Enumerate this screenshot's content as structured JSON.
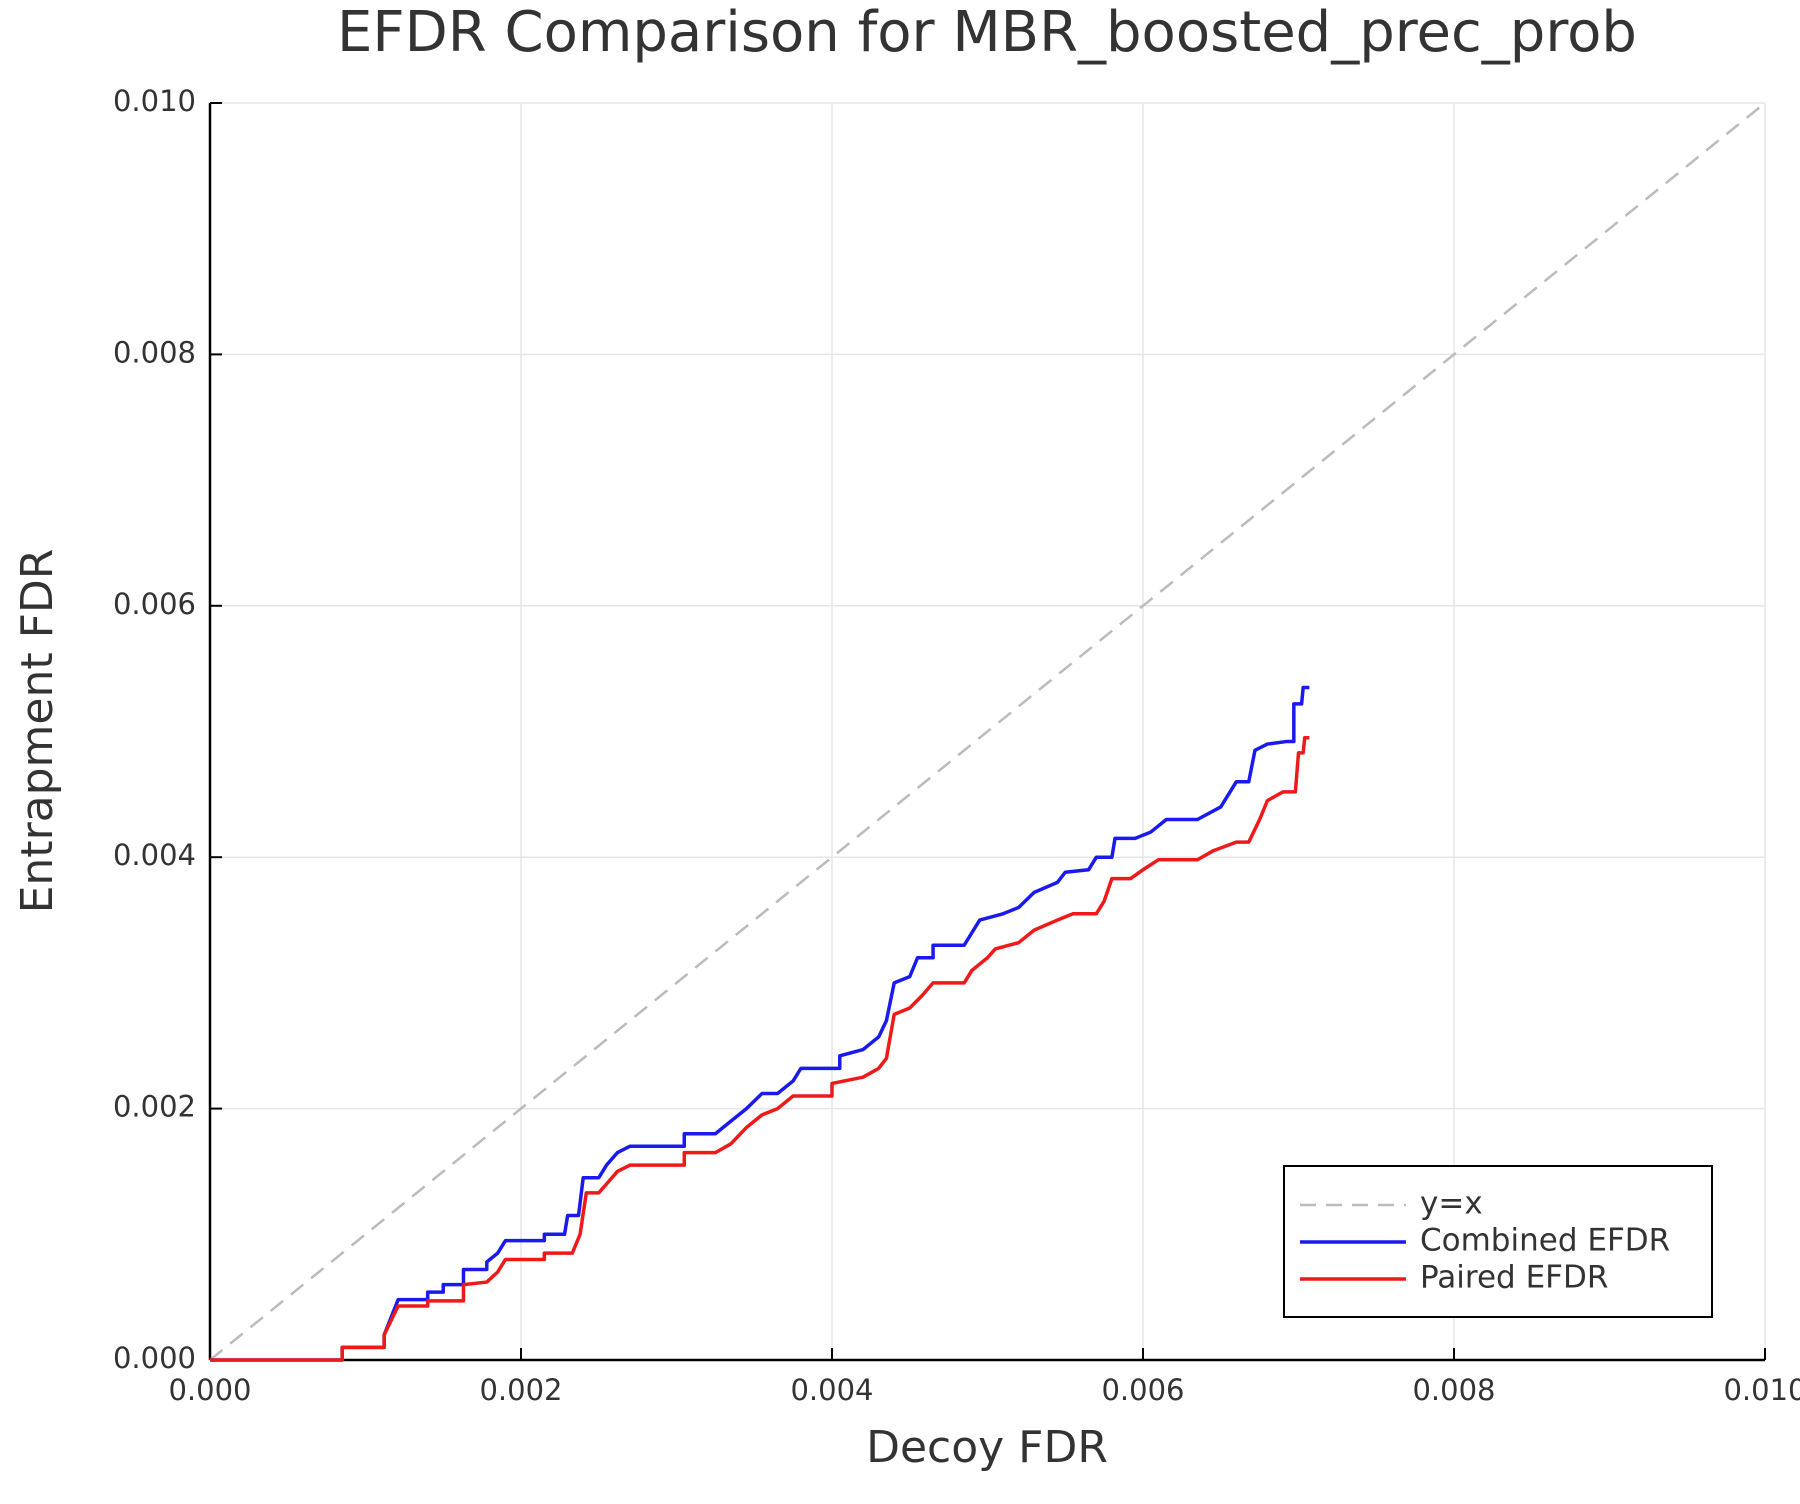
{
  "chart_data": {
    "type": "line",
    "title": "EFDR Comparison for MBR_boosted_prec_prob",
    "xlabel": "Decoy FDR",
    "ylabel": "Entrapment FDR",
    "xlim": [
      0,
      0.01
    ],
    "ylim": [
      0,
      0.01
    ],
    "xticks": [
      {
        "value": 0,
        "label": "0.000"
      },
      {
        "value": 0.002,
        "label": "0.002"
      },
      {
        "value": 0.004,
        "label": "0.004"
      },
      {
        "value": 0.006,
        "label": "0.006"
      },
      {
        "value": 0.008,
        "label": "0.008"
      },
      {
        "value": 0.01,
        "label": "0.010"
      }
    ],
    "yticks": [
      {
        "value": 0,
        "label": "0.000"
      },
      {
        "value": 0.002,
        "label": "0.002"
      },
      {
        "value": 0.004,
        "label": "0.004"
      },
      {
        "value": 0.006,
        "label": "0.006"
      },
      {
        "value": 0.008,
        "label": "0.008"
      },
      {
        "value": 0.01,
        "label": "0.010"
      }
    ],
    "grid": true,
    "legend": "bottom-right",
    "series": [
      {
        "name": "y=x",
        "color": "#bbbbbb",
        "dash": true,
        "x": [
          0,
          0.01
        ],
        "values": [
          0,
          0.01
        ]
      },
      {
        "name": "Combined EFDR",
        "color": "#1a1aee",
        "x": [
          0,
          0.00085,
          0.00085,
          0.00112,
          0.00112,
          0.00121,
          0.0014,
          0.0014,
          0.0015,
          0.0015,
          0.00163,
          0.00163,
          0.00178,
          0.00178,
          0.00185,
          0.0019,
          0.00215,
          0.00215,
          0.00228,
          0.0023,
          0.00237,
          0.0024,
          0.0025,
          0.00255,
          0.00262,
          0.0027,
          0.00305,
          0.00305,
          0.00325,
          0.00335,
          0.00345,
          0.00355,
          0.00365,
          0.00375,
          0.0038,
          0.00405,
          0.00405,
          0.0042,
          0.0043,
          0.00435,
          0.0044,
          0.0045,
          0.00455,
          0.00465,
          0.00465,
          0.00485,
          0.0049,
          0.00495,
          0.0051,
          0.0052,
          0.0053,
          0.00545,
          0.0055,
          0.00565,
          0.0057,
          0.0058,
          0.00582,
          0.00595,
          0.00605,
          0.00615,
          0.00635,
          0.0065,
          0.0066,
          0.00668,
          0.00672,
          0.0068,
          0.00692,
          0.00697,
          0.00697,
          0.00702,
          0.00703,
          0.00707
        ],
        "values": [
          0,
          0,
          0.0001,
          0.0001,
          0.0002,
          0.00048,
          0.00048,
          0.00054,
          0.00054,
          0.0006,
          0.0006,
          0.00072,
          0.00072,
          0.00078,
          0.00085,
          0.00095,
          0.00095,
          0.001,
          0.001,
          0.00115,
          0.00115,
          0.00145,
          0.00145,
          0.00155,
          0.00165,
          0.0017,
          0.0017,
          0.0018,
          0.0018,
          0.0019,
          0.002,
          0.00212,
          0.00212,
          0.00222,
          0.00232,
          0.00232,
          0.00242,
          0.00247,
          0.00257,
          0.0027,
          0.003,
          0.00305,
          0.0032,
          0.0032,
          0.0033,
          0.0033,
          0.0034,
          0.0035,
          0.00355,
          0.0036,
          0.00372,
          0.0038,
          0.00388,
          0.0039,
          0.004,
          0.004,
          0.00415,
          0.00415,
          0.0042,
          0.0043,
          0.0043,
          0.0044,
          0.0046,
          0.0046,
          0.00485,
          0.0049,
          0.00492,
          0.00492,
          0.00522,
          0.00522,
          0.00535,
          0.00535
        ]
      },
      {
        "name": "Paired EFDR",
        "color": "#ee1a1a",
        "x": [
          0,
          0.00085,
          0.00085,
          0.00112,
          0.00112,
          0.00121,
          0.0014,
          0.0014,
          0.00163,
          0.00163,
          0.00178,
          0.00185,
          0.0019,
          0.00215,
          0.00215,
          0.00233,
          0.00238,
          0.00242,
          0.0025,
          0.00255,
          0.00262,
          0.0027,
          0.00305,
          0.00305,
          0.00325,
          0.00335,
          0.00345,
          0.00355,
          0.00365,
          0.00375,
          0.004,
          0.004,
          0.0042,
          0.0043,
          0.00435,
          0.0044,
          0.0045,
          0.00458,
          0.00465,
          0.00485,
          0.0049,
          0.005,
          0.00505,
          0.0052,
          0.0053,
          0.00545,
          0.00555,
          0.0057,
          0.00575,
          0.0058,
          0.00592,
          0.006,
          0.0061,
          0.00635,
          0.00645,
          0.0066,
          0.00668,
          0.00675,
          0.0068,
          0.0069,
          0.00698,
          0.007,
          0.00703,
          0.00704,
          0.00707
        ],
        "values": [
          0,
          0,
          0.0001,
          0.0001,
          0.0002,
          0.00043,
          0.00043,
          0.00047,
          0.00047,
          0.0006,
          0.00062,
          0.0007,
          0.0008,
          0.0008,
          0.00085,
          0.00085,
          0.001,
          0.00133,
          0.00133,
          0.0014,
          0.0015,
          0.00155,
          0.00155,
          0.00165,
          0.00165,
          0.00172,
          0.00185,
          0.00195,
          0.002,
          0.0021,
          0.0021,
          0.0022,
          0.00225,
          0.00232,
          0.0024,
          0.00275,
          0.0028,
          0.0029,
          0.003,
          0.003,
          0.0031,
          0.0032,
          0.00327,
          0.00332,
          0.00342,
          0.0035,
          0.00355,
          0.00355,
          0.00365,
          0.00383,
          0.00383,
          0.0039,
          0.00398,
          0.00398,
          0.00405,
          0.00412,
          0.00412,
          0.0043,
          0.00445,
          0.00452,
          0.00452,
          0.00483,
          0.00483,
          0.00495,
          0.00495
        ]
      }
    ]
  }
}
